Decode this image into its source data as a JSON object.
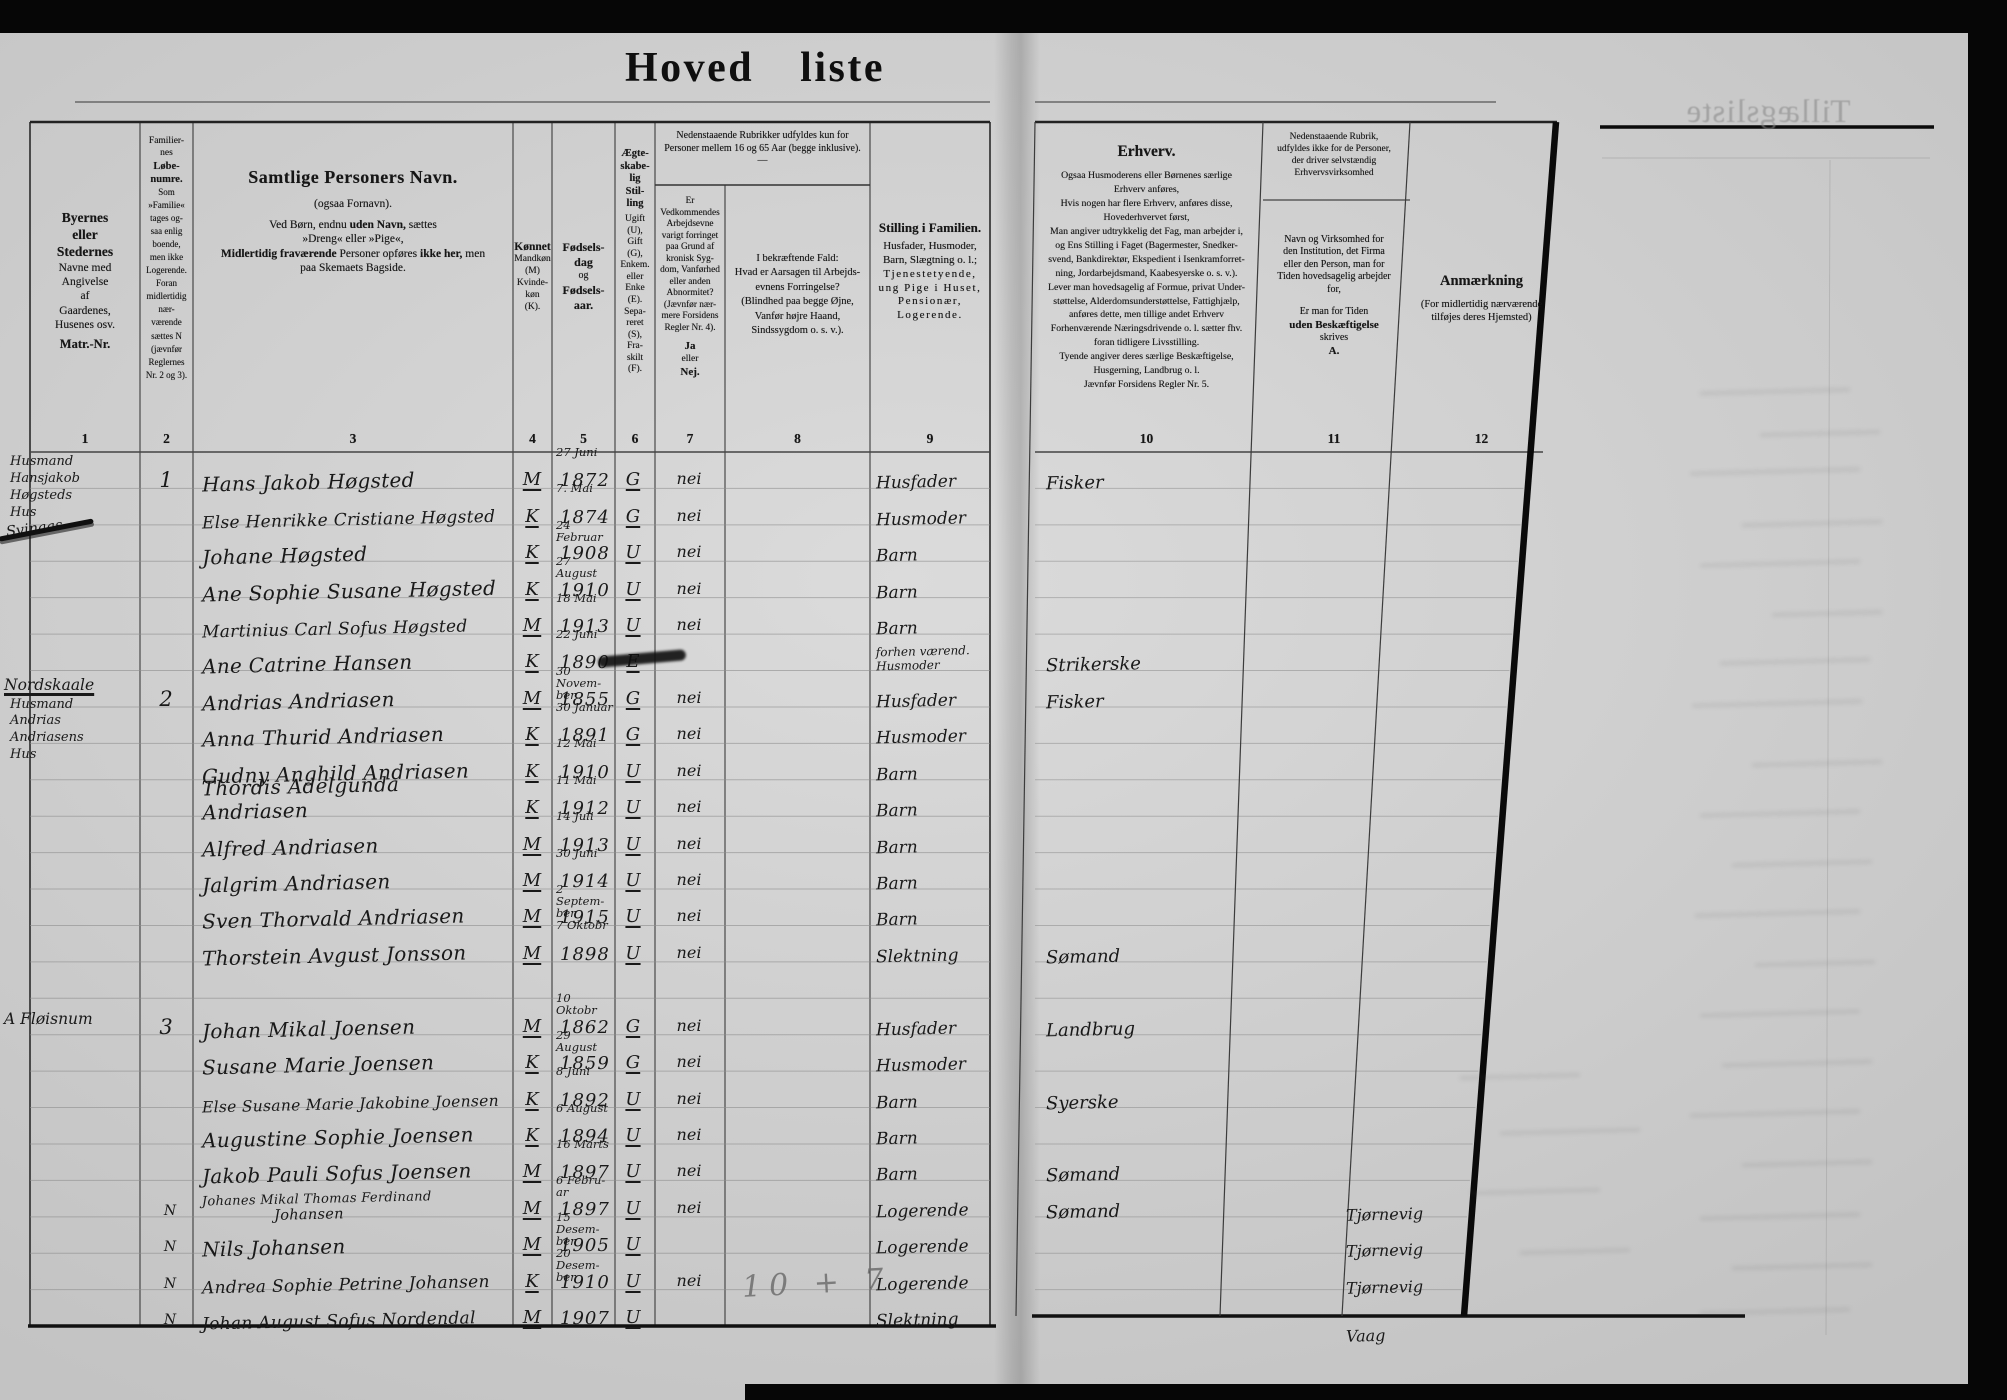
{
  "title": {
    "word1": "Hoved",
    "word2": "liste"
  },
  "bleed": {
    "text": "Tillægsliste"
  },
  "pencil_note": "10 + 7",
  "header": {
    "span_note": "Nedenstaaende Rubrikker udfyldes kun for\nPersoner mellem 16 og 65 Aar (begge inklusive).",
    "span_note_dash": "—",
    "cols": {
      "c1": {
        "num": "1",
        "b1": "Byernes\neller\nStedernes",
        "t1": "Navne med\nAngivelse\naf\nGaardenes,\nHusenes osv.",
        "b2": "Matr.-Nr."
      },
      "c2": {
        "num": "2",
        "t1": "Familier-\nnes",
        "b1": "Løbe-\nnumre.",
        "t2": "Som\n»Familie«\ntages og-\nsaa enlig\nboende,\nmen ikke\nLogerende.\nForan\nmidlertidig\nnær-\nværende\nsættes N\n(jævnfør\nReglernes\nNr. 2 og 3)."
      },
      "c3": {
        "num": "3",
        "b1": "Samtlige Personers Navn.",
        "t1": "(ogsaa Fornavn).",
        "t2": "Ved Børn, endnu ",
        "b2": "uden Navn,",
        "t3": " sættes\n»Dreng« eller »Pige«,",
        "b3": "Midlertidig fraværende",
        "t4": " Personer opføres ",
        "b4": "ikke her,",
        "t5": " men\npaa Skemaets Bagside."
      },
      "c4": {
        "num": "4",
        "b1": "Kønnet",
        "t1": "Mandkøn\n(M)\nKvinde-\nkøn\n(K)."
      },
      "c5": {
        "num": "5",
        "b1": "Fødsels-\ndag",
        "t1": "og",
        "b2": "Fødsels-\naar."
      },
      "c6": {
        "num": "6",
        "b1": "Ægte-\nskabe-\nlig\nStil-\nling",
        "t1": "Ugift\n(U),\nGift\n(G),\nEnkem.\neller\nEnke\n(E).\nSepa-\nreret\n(S),\nFra-\nskilt\n(F)."
      },
      "c7": {
        "num": "7",
        "t1": "Er\nVedkommendes\nArbejdsevne\nvarigt forringet\npaa Grund af\nkronisk Syg-\ndom, Vanførhed\neller anden\nAbnormitet?\n(Jævnfør nær-\nmere Forsidens\nRegler Nr. 4).",
        "b1": "Ja",
        "t2": "eller",
        "b2": "Nej."
      },
      "c8": {
        "num": "8",
        "t1": "I bekræftende Fald:\nHvad er Aarsagen til Arbejds-\nevnens Forringelse?\n(Blindhed paa begge Øjne,\nVanfør højre Haand,\nSindssygdom o. s. v.)."
      },
      "c9": {
        "num": "9",
        "b1": "Stilling i Familien.",
        "t1": "Husfader, Husmoder,\nBarn, Slægtning o. l.;",
        "s1": "Tjenestetyende,\nung Pige i Huset,\nPensionær,\nLogerende."
      },
      "c10": {
        "num": "10",
        "b1": "Erhverv.",
        "t1": "Ogsaa Husmoderens eller Børnenes særlige\nErhverv anføres,\nHvis nogen har flere Erhverv, anføres disse,\nHovederhvervet først,\nMan angiver udtrykkelig det Fag, man arbejder i,\nog Ens Stilling i Faget (Bagermester, Snedker-\nsvend, Bankdirektør, Ekspedient i Isenkramforret-\nning, Jordarbejdsmand, Kaabesyerske o. s. v.).\nLever man hovedsagelig af Formue, privat Under-\nstøttelse, Alderdomsunderstøttelse, Fattighjælp,\nanføres dette, men tillige andet Erhverv\nForhenværende Næringsdrivende o. l. sætter fhv.\nforan tidligere Livsstilling.\nTyende angiver deres særlige Beskæftigelse,\nHusgerning, Landbrug o. l.\nJævnfør Forsidens Regler Nr. 5."
      },
      "c11": {
        "num": "11",
        "t1": "Nedenstaaende Rubrik,\nudfyldes ikke for de Personer,\nder driver selvstændig\nErhvervsvirksomhed",
        "t2a": "Navn og Virksomhed for\nden Institution, det Firma\neller den Person, man for\nTiden hovedsagelig arbejder\nfor,",
        "t2b": "Er man for Tiden",
        "b1": "uden Beskæftigelse",
        "t3": "skrives",
        "b2": "A."
      },
      "c12": {
        "num": "12",
        "b1": "Anmærkning",
        "t1": "(For midlertidig nærværende\ntilføjes deres Hjemsted)"
      }
    }
  },
  "rows": [
    {
      "place": "Husmand\nHansjakob\nHøgsteds\nHus",
      "place_struck": "Svinaas",
      "fam": "1",
      "name": "Hans Jakob Høgsted",
      "sex": "M",
      "bday": "27 Juni",
      "byear": "1872",
      "status": "G",
      "able": "nei",
      "pos": "Husfader",
      "occ": "Fisker"
    },
    {
      "name": "Else Henrikke Cristiane Høgsted",
      "sex": "K",
      "bday": "7. Mai",
      "byear": "1874",
      "status": "G",
      "able": "nei",
      "pos": "Husmoder"
    },
    {
      "name": "Johane Høgsted",
      "sex": "K",
      "bday": "24 Februar",
      "byear": "1908",
      "status": "U",
      "able": "nei",
      "pos": "Barn"
    },
    {
      "name": "Ane Sophie Susane Høgsted",
      "sex": "K",
      "bday": "27 August",
      "byear": "1910",
      "status": "U",
      "able": "nei",
      "pos": "Barn"
    },
    {
      "name": "Martinius Carl Sofus Høgsted",
      "sex": "M",
      "bday": "18 Mai",
      "byear": "1913",
      "status": "U",
      "able": "nei",
      "pos": "Barn"
    },
    {
      "name": "Ane Catrine Hansen",
      "sex": "K",
      "bday": "22 Juni",
      "byear": "1890",
      "status": "E",
      "status_smudged": true,
      "pos": "forhen værend.\nHusmoder",
      "occ": "Strikerske"
    },
    {
      "place_title": "Nordskaale",
      "place_title_underline": true,
      "place": "Husmand\nAndrias\nAndriasens\nHus",
      "fam": "2",
      "name": "Andrias Andriasen",
      "sex": "M",
      "bday": "30 Novem-ber",
      "byear": "1855",
      "status": "G",
      "able": "nei",
      "pos": "Husfader",
      "occ": "Fisker"
    },
    {
      "name": "Anna Thurid Andriasen",
      "sex": "K",
      "bday": "30 Januar",
      "byear": "1891",
      "status": "G",
      "able": "nei",
      "pos": "Husmoder"
    },
    {
      "name": "Gudny Anghild Andriasen",
      "sex": "K",
      "bday": "12 Mai",
      "byear": "1910",
      "status": "U",
      "able": "nei",
      "pos": "Barn"
    },
    {
      "name": "Thordis Adelgunda Andriasen",
      "sex": "K",
      "bday": "11 Mai",
      "byear": "1912",
      "status": "U",
      "able": "nei",
      "pos": "Barn"
    },
    {
      "name": "Alfred Andriasen",
      "sex": "M",
      "bday": "14 Juli",
      "byear": "1913",
      "status": "U",
      "able": "nei",
      "pos": "Barn"
    },
    {
      "name": "Jalgrim Andriasen",
      "sex": "M",
      "bday": "30 Juni",
      "byear": "1914",
      "status": "U",
      "able": "nei",
      "pos": "Barn"
    },
    {
      "name": "Sven Thorvald Andriasen",
      "sex": "M",
      "bday": "2 Septem-ber",
      "byear": "1915",
      "status": "U",
      "able": "nei",
      "pos": "Barn"
    },
    {
      "name": "Thorstein Avgust Jonsson",
      "sex": "M",
      "bday": "7 Oktobr",
      "byear": "1898",
      "status": "U",
      "able": "nei",
      "pos": "Slektning",
      "occ": "Sømand"
    },
    {},
    {
      "place_title": "A Fløisnum",
      "fam": "3",
      "name": "Johan Mikal Joensen",
      "sex": "M",
      "bday": "10 Oktobr",
      "byear": "1862",
      "status": "G",
      "able": "nei",
      "pos": "Husfader",
      "occ": "Landbrug"
    },
    {
      "name": "Susane Marie Joensen",
      "sex": "K",
      "bday": "29 August",
      "byear": "1859",
      "status": "G",
      "able": "nei",
      "pos": "Husmoder"
    },
    {
      "name": "Else Susane Marie Jakobine Joensen",
      "sex": "K",
      "bday": "8 Juni",
      "byear": "1892",
      "status": "U",
      "able": "nei",
      "pos": "Barn",
      "occ": "Syerske"
    },
    {
      "name": "Augustine Sophie Joensen",
      "sex": "K",
      "bday": "6 August",
      "byear": "1894",
      "status": "U",
      "able": "nei",
      "pos": "Barn"
    },
    {
      "name": "Jakob Pauli Sofus Joensen",
      "sex": "M",
      "bday": "16 Marts",
      "byear": "1897",
      "status": "U",
      "able": "nei",
      "pos": "Barn",
      "occ": "Sømand"
    },
    {
      "n": "N",
      "name": "Johanes Mikal Thomas Ferdinand",
      "name2": "Johansen",
      "sex": "M",
      "bday": "6 Febru-ar",
      "byear": "1897",
      "status": "U",
      "able": "nei",
      "pos": "Logerende",
      "occ": "Sømand",
      "remark": "Tjørnevig"
    },
    {
      "n": "N",
      "name": "Nils Johansen",
      "sex": "M",
      "bday": "15 Desem-ber",
      "byear": "1905",
      "status": "U",
      "pos": "Logerende",
      "remark": "Tjørnevig"
    },
    {
      "n": "N",
      "name": "Andrea Sophie Petrine Johansen",
      "sex": "K",
      "bday": "20 Desem-ber",
      "byear": "1910",
      "status": "U",
      "able": "nei",
      "pos": "Logerende",
      "remark": "Tjørnevig"
    },
    {
      "n": "N",
      "name": "Johan August Sofus Nordendal",
      "sex": "M",
      "byear": "1907",
      "status": "U",
      "pos": "Slektning",
      "remark": "Vaag"
    }
  ]
}
